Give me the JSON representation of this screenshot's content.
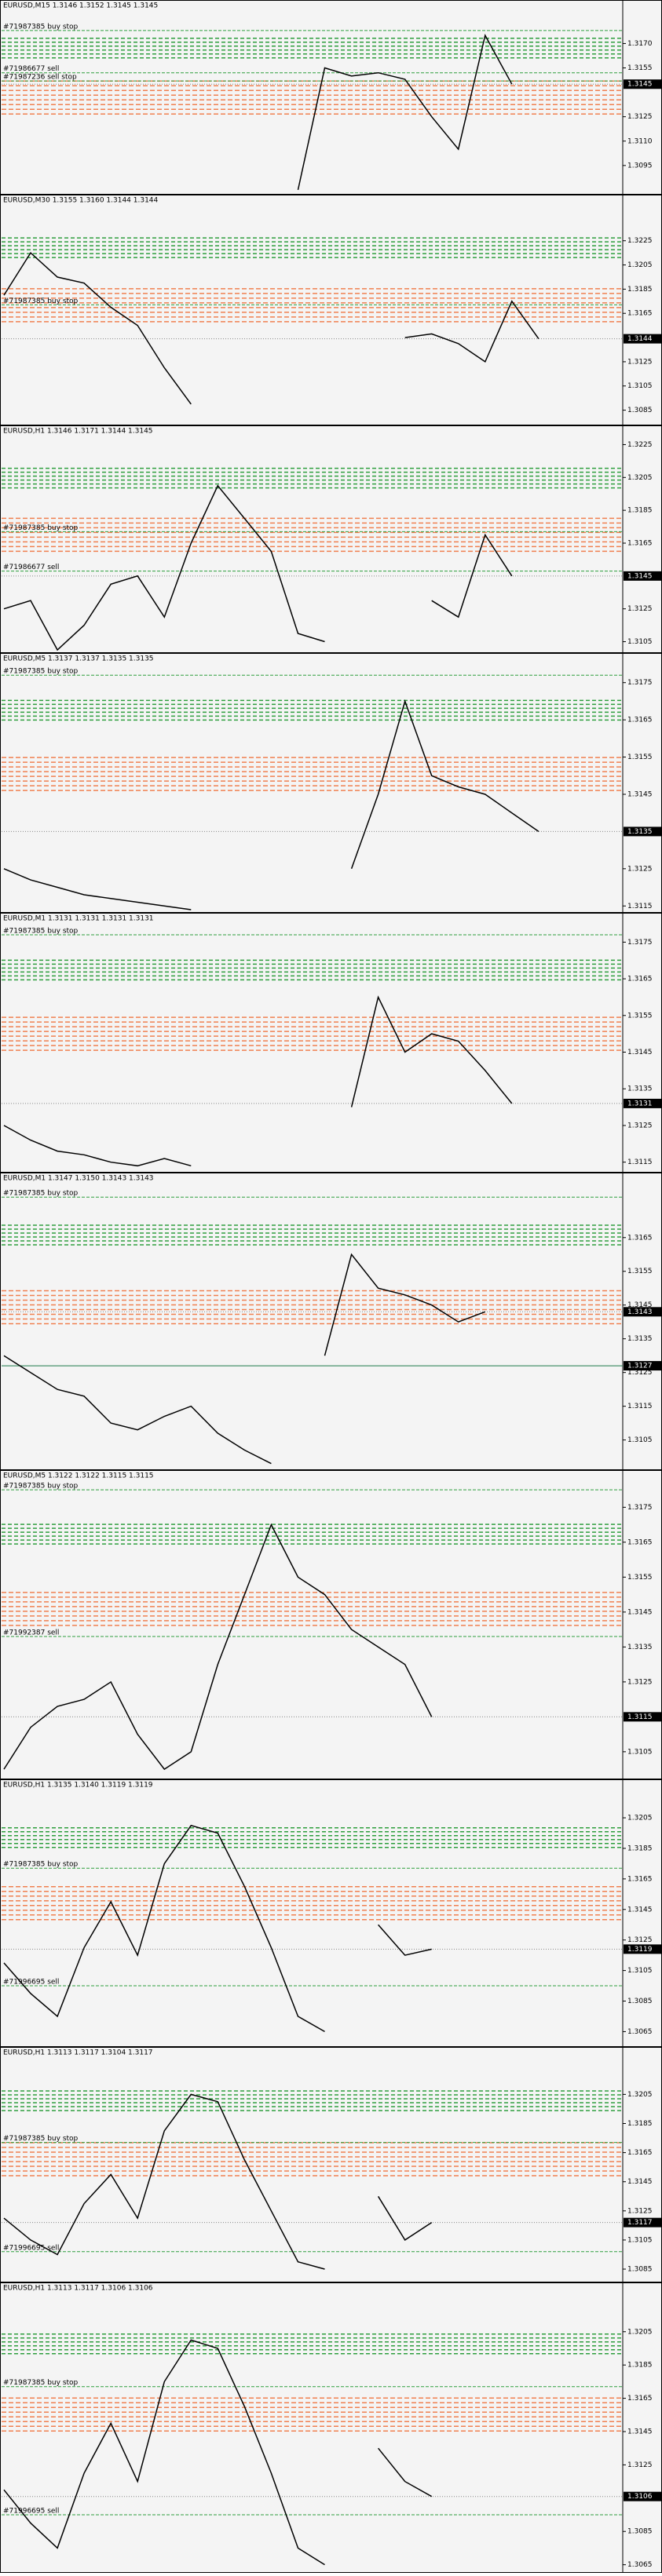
{
  "panels": [
    {
      "header": "EURUSD,M15 1.3146 1.3152 1.3145 1.3145",
      "ylim": [
        1.3079,
        1.319
      ],
      "ticks": [
        {
          "value": 1.317,
          "label": "1.3170"
        },
        1.3155,
        1.3125,
        {
          "value": 1.311,
          "label": "1.3110"
        },
        1.3095
      ],
      "current": 1.3145,
      "orders": [
        {
          "label": "#71987385 buy stop",
          "price": 1.3178
        },
        {
          "label": "#71986677 sell",
          "price": 1.3152
        },
        {
          "label": "#71987236 sell stop",
          "price": 1.3147
        }
      ],
      "closes": [
        null,
        null,
        null,
        null,
        null,
        null,
        null,
        null,
        null,
        null,
        null,
        1.308,
        1.3155,
        1.315,
        1.3152,
        1.3148,
        1.3125,
        1.3105,
        1.3175,
        1.3145,
        null,
        null,
        null,
        null
      ]
    },
    {
      "header": "EURUSD,M30 1.3155 1.3160 1.3144 1.3144",
      "ylim": [
        1.3075,
        1.3254
      ],
      "ticks": [
        1.3225,
        1.3205,
        1.3185,
        1.3165,
        1.3125,
        1.3105,
        1.3085
      ],
      "current": 1.3144,
      "orders": [
        {
          "label": "#71987385 buy stop",
          "price": 1.3172
        }
      ],
      "closes": [
        1.318,
        1.3215,
        1.3195,
        1.319,
        1.317,
        1.3155,
        1.312,
        1.309,
        null,
        null,
        null,
        null,
        null,
        null,
        null,
        1.3145,
        1.3148,
        1.314,
        1.3125,
        1.3175,
        1.3144,
        null,
        null,
        null
      ]
    },
    {
      "header": "EURUSD,H1 1.3146 1.3171 1.3144 1.3145",
      "ylim": [
        1.31,
        1.323
      ],
      "ticks": [
        1.3225,
        1.3205,
        1.3185,
        1.3165,
        1.3125,
        1.3105
      ],
      "current": 1.3145,
      "orders": [
        {
          "label": "#71987385 buy stop",
          "price": 1.3172
        },
        {
          "label": "#71986677 sell",
          "price": 1.3148
        }
      ],
      "closes": [
        1.3125,
        1.313,
        1.31,
        1.3115,
        1.314,
        1.3145,
        1.312,
        1.3165,
        1.32,
        1.318,
        1.316,
        1.311,
        1.3105,
        null,
        null,
        null,
        1.313,
        1.312,
        1.317,
        1.3145,
        null,
        null,
        null,
        null
      ]
    },
    {
      "header": "EURUSD,M5 1.3137 1.3137 1.3135 1.3135",
      "ylim": [
        1.3114,
        1.318
      ],
      "ticks": [
        1.3175,
        1.3165,
        1.3155,
        1.3145,
        1.3125,
        1.3115
      ],
      "current": 1.3135,
      "orders": [
        {
          "label": "#71987385 buy stop",
          "price": 1.3177
        }
      ],
      "closes": [
        1.3125,
        1.3122,
        1.312,
        1.3118,
        1.3117,
        1.3116,
        1.3115,
        1.3114,
        null,
        null,
        null,
        null,
        null,
        1.3125,
        1.3145,
        1.317,
        1.315,
        1.3147,
        1.3145,
        1.314,
        1.3135,
        null,
        null,
        null
      ]
    },
    {
      "header": "EURUSD,M1 1.3131 1.3131 1.3131 1.3131",
      "ylim": [
        1.3113,
        1.318
      ],
      "ticks": [
        1.3175,
        1.3165,
        1.3155,
        1.3145,
        1.3135,
        1.3125,
        1.3115
      ],
      "current": 1.3131,
      "orders": [
        {
          "label": "#71987385 buy stop",
          "price": 1.3177
        }
      ],
      "closes": [
        1.3125,
        1.3121,
        1.3118,
        1.3117,
        1.3115,
        1.3114,
        1.3116,
        1.3114,
        null,
        null,
        null,
        null,
        null,
        1.313,
        1.316,
        1.3145,
        1.315,
        1.3148,
        1.314,
        1.3131,
        null,
        null,
        null,
        null
      ]
    },
    {
      "header": "EURUSD,M1 1.3147 1.3150 1.3143 1.3143",
      "ylim": [
        1.3097,
        1.3181
      ],
      "ticks": [
        1.3165,
        1.3155,
        1.3145,
        1.3135,
        1.3125,
        1.3115,
        1.3105
      ],
      "current": 1.3143,
      "line_price": 1.3127,
      "orders": [
        {
          "label": "#71987385 buy stop",
          "price": 1.3177
        }
      ],
      "closes": [
        1.313,
        1.3125,
        1.312,
        1.3118,
        1.311,
        1.3108,
        1.3112,
        1.3115,
        1.3107,
        1.3102,
        1.3098,
        null,
        1.313,
        1.316,
        1.315,
        1.3148,
        1.3145,
        1.314,
        1.3143,
        null,
        null,
        null,
        null,
        null
      ]
    },
    {
      "header": "EURUSD,M5 1.3122 1.3122 1.3115 1.3115",
      "ylim": [
        1.3098,
        1.31825
      ],
      "ticks": [
        1.3175,
        1.3165,
        1.3155,
        1.3145,
        1.3135,
        1.3125,
        1.3105
      ],
      "current": 1.3115,
      "orders": [
        {
          "label": "#71987385 buy stop",
          "price": 1.318
        },
        {
          "label": "#71992387 sell",
          "price": 1.3138
        }
      ],
      "closes": [
        1.31,
        1.3112,
        1.3118,
        1.312,
        1.3125,
        1.311,
        1.31,
        1.3105,
        1.313,
        1.315,
        1.317,
        1.3155,
        1.315,
        1.314,
        1.3135,
        1.313,
        1.3115,
        null,
        null,
        null,
        null,
        null,
        null,
        null
      ]
    },
    {
      "header": "EURUSD,H1 1.3135 1.3140 1.3119 1.3119",
      "ylim": [
        1.3057,
        1.3223
      ],
      "ticks": [
        1.3205,
        1.3185,
        1.3165,
        1.3145,
        1.3125,
        1.3105,
        1.3085,
        1.3065
      ],
      "current": 1.3119,
      "orders": [
        {
          "label": "#71987385 buy stop",
          "price": 1.3172
        },
        {
          "label": "#71996695 sell",
          "price": 1.3095
        }
      ],
      "closes": [
        1.311,
        1.309,
        1.3075,
        1.312,
        1.315,
        1.3115,
        1.3175,
        1.32,
        1.3195,
        1.316,
        1.312,
        1.3075,
        1.3065,
        null,
        1.3135,
        1.3115,
        1.3119,
        null,
        null,
        null,
        null,
        null,
        null,
        null
      ]
    },
    {
      "header": "EURUSD,H1 1.3113 1.3117 1.3104 1.3117",
      "ylim": [
        1.3078,
        1.323
      ],
      "ticks": [
        1.3205,
        1.3185,
        1.3165,
        1.3145,
        1.3125,
        1.3105,
        1.3085
      ],
      "current": 1.3117,
      "orders": [
        {
          "label": "#71987385 buy stop",
          "price": 1.3172
        },
        {
          "label": "#71996695 sell",
          "price": 1.3097
        }
      ],
      "closes": [
        1.312,
        1.3105,
        1.3095,
        1.313,
        1.315,
        1.312,
        1.318,
        1.3205,
        1.32,
        1.316,
        1.3125,
        1.309,
        1.3085,
        null,
        1.3135,
        1.3105,
        1.3117,
        null,
        null,
        null,
        null,
        null,
        null,
        null
      ]
    },
    {
      "header": "EURUSD,H1 1.3113 1.3117 1.3106 1.3106",
      "ylim": [
        1.3062,
        1.3228
      ],
      "ticks": [
        1.3205,
        1.3185,
        1.3165,
        1.3145,
        1.3125,
        1.3085,
        1.3065
      ],
      "current": 1.3106,
      "orders": [
        {
          "label": "#71987385 buy stop",
          "price": 1.3172
        },
        {
          "label": "#71996695 sell",
          "price": 1.3095
        }
      ],
      "closes": [
        1.311,
        1.309,
        1.3075,
        1.312,
        1.315,
        1.3115,
        1.3175,
        1.32,
        1.3195,
        1.316,
        1.312,
        1.3075,
        1.3065,
        null,
        1.3135,
        1.3115,
        1.3106,
        null,
        null,
        null,
        null,
        null,
        null,
        null
      ]
    }
  ]
}
